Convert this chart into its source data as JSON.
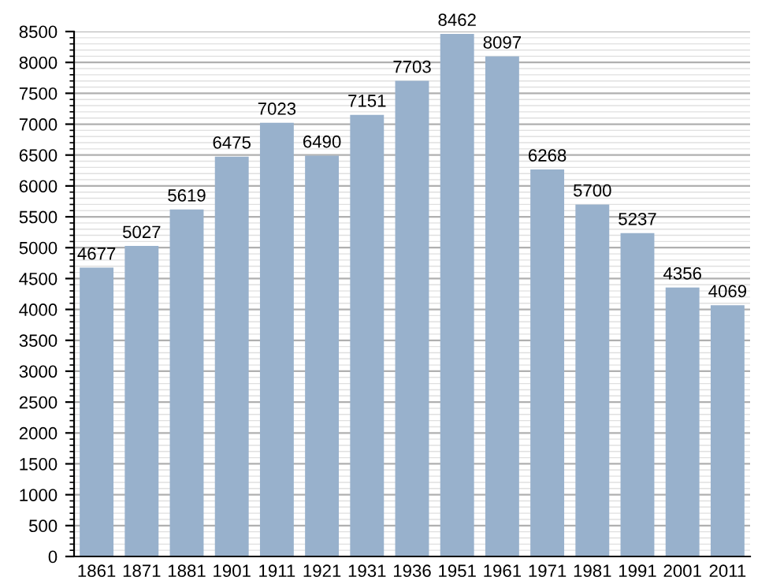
{
  "chart_data": {
    "type": "bar",
    "categories": [
      "1861",
      "1871",
      "1881",
      "1901",
      "1911",
      "1921",
      "1931",
      "1936",
      "1951",
      "1961",
      "1971",
      "1981",
      "1991",
      "2001",
      "2011"
    ],
    "values": [
      4677,
      5027,
      5619,
      6475,
      7023,
      6490,
      7151,
      7703,
      8462,
      8097,
      6268,
      5700,
      5237,
      4356,
      4069
    ],
    "color": "#98b1cc",
    "ylim": [
      0,
      8500
    ],
    "yticks": [
      0,
      500,
      1000,
      1500,
      2000,
      2500,
      3000,
      3500,
      4000,
      4500,
      5000,
      5500,
      6000,
      6500,
      7000,
      7500,
      8000,
      8500
    ],
    "grid": "y",
    "data_labels": true
  }
}
